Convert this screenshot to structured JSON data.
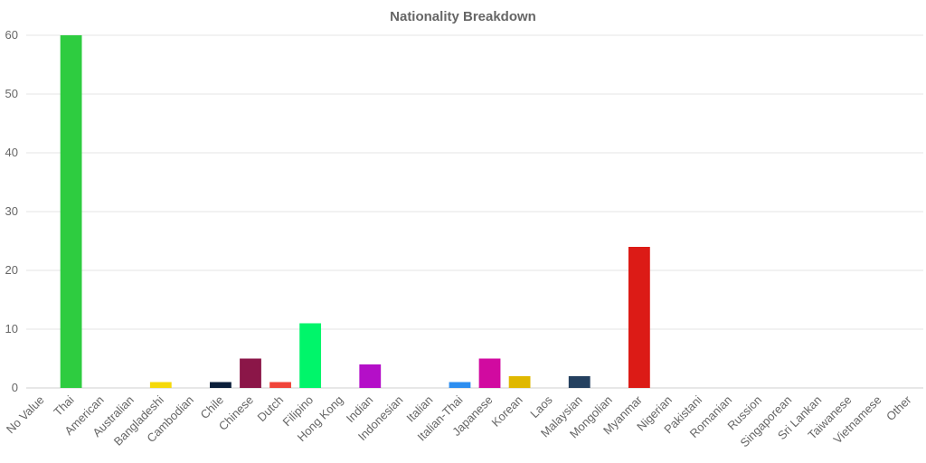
{
  "chart_data": {
    "type": "bar",
    "title": "Nationality Breakdown",
    "xlabel": "",
    "ylabel": "",
    "ylim": [
      0,
      60
    ],
    "yticks": [
      0,
      10,
      20,
      30,
      40,
      50,
      60
    ],
    "grid": true,
    "legend": "none",
    "categories": [
      "No Value",
      "Thai",
      "American",
      "Australian",
      "Bangladeshi",
      "Cambodian",
      "Chile",
      "Chinese",
      "Dutch",
      "Filipino",
      "Hong Kong",
      "Indian",
      "Indonesian",
      "Italian",
      "Italian-Thai",
      "Japanese",
      "Korean",
      "Laos",
      "Malaysian",
      "Mongolian",
      "Myanmar",
      "Nigerian",
      "Pakistani",
      "Romanian",
      "Russion",
      "Singaporean",
      "Sri Lankan",
      "Taiwanese",
      "Vietnamese",
      "Other"
    ],
    "values": [
      0,
      60,
      0,
      0,
      1,
      0,
      1,
      5,
      1,
      11,
      0,
      4,
      0,
      0,
      1,
      5,
      2,
      0,
      2,
      0,
      24,
      0,
      0,
      0,
      0,
      0,
      0,
      0,
      0,
      0
    ],
    "colors": [
      "#999999",
      "#2ecc40",
      "#999999",
      "#999999",
      "#f5d90a",
      "#999999",
      "#0b1f3a",
      "#8b1648",
      "#f0443a",
      "#00f56a",
      "#999999",
      "#b40fc8",
      "#999999",
      "#999999",
      "#2d8ef0",
      "#d10aa0",
      "#e0b800",
      "#999999",
      "#24405f",
      "#999999",
      "#dc1b16",
      "#999999",
      "#999999",
      "#999999",
      "#999999",
      "#999999",
      "#999999",
      "#999999",
      "#999999",
      "#999999"
    ]
  }
}
